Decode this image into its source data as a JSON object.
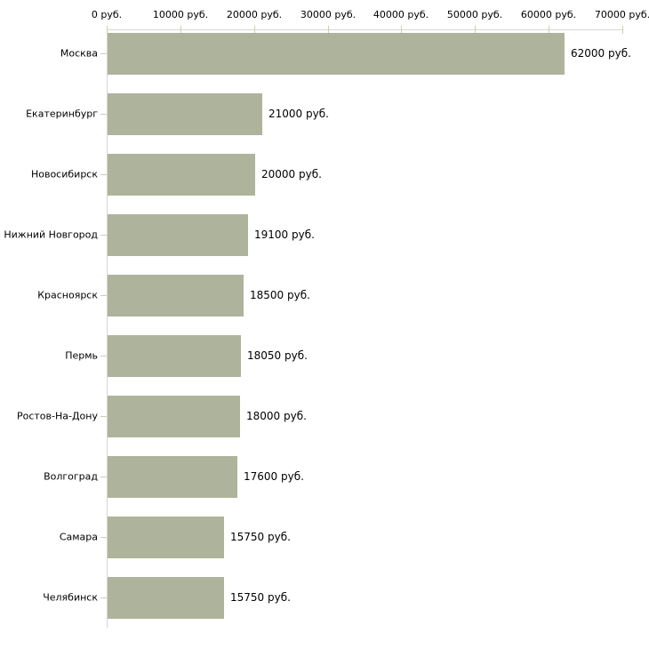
{
  "chart_data": {
    "type": "bar",
    "orientation": "horizontal",
    "title": "",
    "categories": [
      "Москва",
      "Екатеринбург",
      "Новосибирск",
      "Нижний Новгород",
      "Красноярск",
      "Пермь",
      "Ростов-На-Дону",
      "Волгоград",
      "Самара",
      "Челябинск"
    ],
    "values": [
      62000,
      21000,
      20000,
      19100,
      18500,
      18050,
      18000,
      17600,
      15750,
      15750
    ],
    "value_labels": [
      "62000 руб.",
      "21000 руб.",
      "20000 руб.",
      "19100 руб.",
      "18500 руб.",
      "18050 руб.",
      "18000 руб.",
      "17600 руб.",
      "15750 руб.",
      "15750 руб."
    ],
    "x_axis": {
      "position": "top",
      "min": 0,
      "max": 70000,
      "tick_interval": 10000,
      "tick_values": [
        0,
        10000,
        20000,
        30000,
        40000,
        50000,
        60000,
        70000
      ],
      "tick_labels": [
        "0 руб.",
        "10000 руб.",
        "20000 руб.",
        "30000 руб.",
        "40000 руб.",
        "50000 руб.",
        "60000 руб.",
        "70000 руб."
      ]
    },
    "grid": false,
    "legend": false,
    "colors": {
      "bar_fill": "#aeb49b",
      "axis_line": "#d6d6d6",
      "tick_mark": "#ccd0ae",
      "text": "#000000",
      "background": "#ffffff"
    }
  }
}
